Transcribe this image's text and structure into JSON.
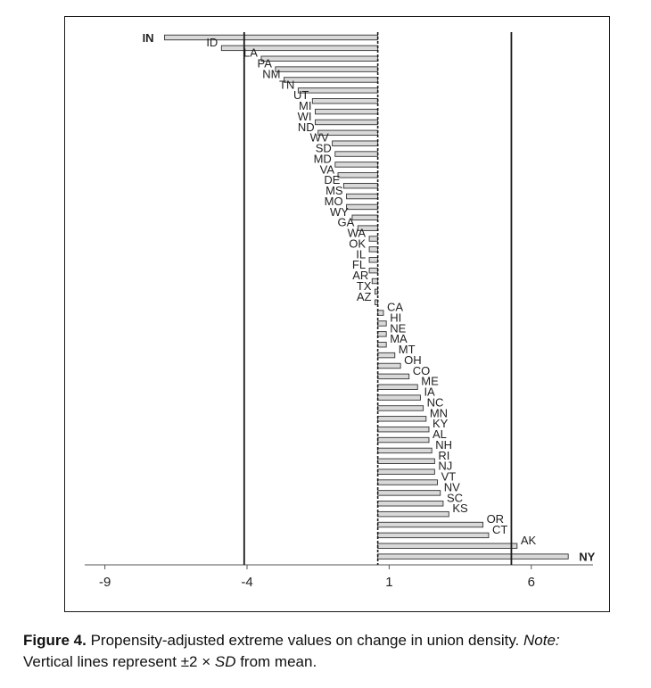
{
  "figure": {
    "caption_label": "Figure 4.",
    "caption_text": " Propensity-adjusted extreme values on change in union density. ",
    "note_label": "Note:",
    "note_text_1": " Vertical lines represent ±2 × ",
    "note_sd": "SD",
    "note_text_2": " from mean."
  },
  "chart_data": {
    "type": "bar",
    "orientation": "horizontal",
    "title": "",
    "xlabel": "",
    "ylabel": "",
    "xlim": [
      -10.4,
      8.8
    ],
    "xticks": [
      -9,
      -4,
      1,
      6
    ],
    "xtick_labels": [
      "-9",
      "-4",
      "1",
      "6"
    ],
    "reference_lines": [
      {
        "x": -4.1,
        "style": "solid"
      },
      {
        "x": 0.6,
        "style": "dashed"
      },
      {
        "x": 5.3,
        "style": "solid"
      }
    ],
    "bar_fill": "#d9d9d9",
    "bar_stroke": "#333333",
    "highlighted": [
      "IN",
      "NY"
    ],
    "categories": [
      "IN",
      "ID",
      "LA",
      "PA",
      "NM",
      "TN",
      "UT",
      "MI",
      "WI",
      "ND",
      "WV",
      "SD",
      "MD",
      "VA",
      "DE",
      "MS",
      "MO",
      "WY",
      "GA",
      "WA",
      "OK",
      "IL",
      "FL",
      "AR",
      "TX",
      "AZ",
      "CA",
      "HI",
      "NE",
      "MA",
      "MT",
      "OH",
      "CO",
      "ME",
      "IA",
      "NC",
      "MN",
      "KY",
      "AL",
      "NH",
      "RI",
      "NJ",
      "VT",
      "NV",
      "SC",
      "KS",
      "OR",
      "CT",
      "AK",
      "NY"
    ],
    "values": [
      -6.9,
      -4.9,
      -3.5,
      -3.0,
      -2.7,
      -2.2,
      -1.7,
      -1.6,
      -1.6,
      -1.5,
      -1.0,
      -0.9,
      -0.9,
      -0.8,
      -0.6,
      -0.5,
      -0.5,
      -0.3,
      -0.1,
      0.3,
      0.3,
      0.3,
      0.3,
      0.4,
      0.5,
      0.5,
      0.8,
      0.9,
      0.9,
      0.9,
      1.2,
      1.4,
      1.7,
      2.0,
      2.1,
      2.2,
      2.3,
      2.4,
      2.4,
      2.5,
      2.6,
      2.6,
      2.7,
      2.8,
      2.9,
      3.1,
      4.3,
      4.5,
      5.5,
      7.3
    ]
  }
}
